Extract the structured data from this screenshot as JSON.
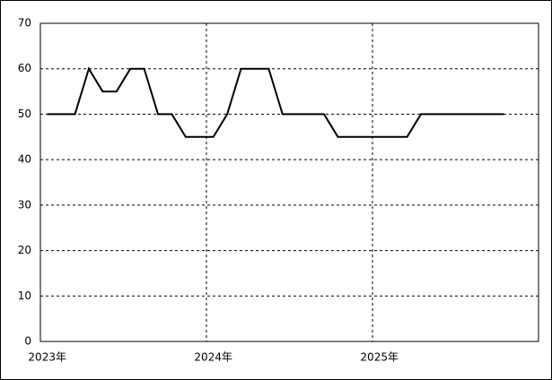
{
  "chart_data": {
    "type": "line",
    "categories": [
      "2023年",
      null,
      null,
      null,
      null,
      null,
      null,
      null,
      null,
      null,
      null,
      null,
      "2024年",
      null,
      null,
      null,
      null,
      null,
      null,
      null,
      null,
      null,
      null,
      null,
      "2025年",
      null,
      null,
      null,
      null,
      null,
      null,
      null,
      null,
      null,
      null,
      null
    ],
    "series": [
      {
        "color": "#000000",
        "values": [
          50,
          50,
          50,
          60,
          55,
          55,
          60,
          60,
          50,
          50,
          45,
          45,
          45,
          50,
          60,
          60,
          60,
          50,
          50,
          50,
          50,
          45,
          45,
          45,
          45,
          45,
          45,
          50,
          50,
          50,
          50,
          50,
          50,
          50,
          null,
          null
        ]
      }
    ],
    "ylim": [
      0,
      70
    ],
    "yticks": [
      0,
      10,
      20,
      30,
      40,
      50,
      60,
      70
    ],
    "grid": true
  }
}
